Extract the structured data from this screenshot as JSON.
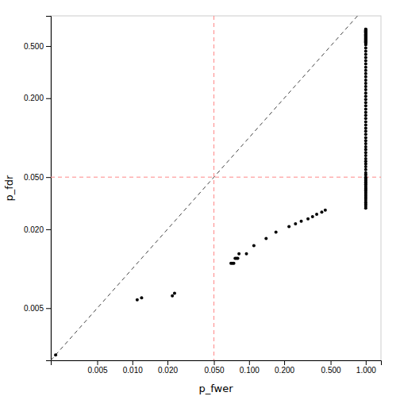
{
  "chart_data": {
    "type": "scatter",
    "xlabel": "p_fwer",
    "ylabel": "p_fdr",
    "log": true,
    "color": "black",
    "marker": "circle",
    "xlim": [
      0.002,
      1.35
    ],
    "ylim": [
      0.002,
      0.85
    ],
    "xticks": [
      0.005,
      {
        "value": 0.01,
        "label": "0.010"
      },
      {
        "value": 0.02,
        "label": "0.020"
      },
      {
        "value": 0.05,
        "label": "0.050"
      },
      {
        "value": 0.1,
        "label": "0.100"
      },
      {
        "value": 0.2,
        "label": "0.200"
      },
      {
        "value": 0.5,
        "label": "0.500"
      },
      {
        "value": 1.0,
        "label": "1.000"
      }
    ],
    "yticks": [
      0.005,
      {
        "value": 0.02,
        "label": "0.020"
      },
      {
        "value": 0.05,
        "label": "0.050"
      },
      {
        "value": 0.2,
        "label": "0.200"
      },
      {
        "value": 0.5,
        "label": "0.500"
      }
    ],
    "identity_line": {
      "color": "#444444",
      "line_style": "dashed"
    },
    "reference_lines": [
      {
        "axis": "x",
        "value": 0.05,
        "color": "#FF8888",
        "line_style": "dashed"
      },
      {
        "axis": "y",
        "value": 0.05,
        "color": "#FF8888",
        "line_style": "dashed"
      }
    ],
    "x": [
      0.0022,
      0.011,
      0.012,
      0.022,
      0.023,
      0.07,
      0.072,
      0.074,
      0.076,
      0.078,
      0.08,
      0.082,
      0.095,
      0.11,
      0.14,
      0.17,
      0.22,
      0.25,
      0.28,
      0.32,
      0.35,
      0.38,
      0.42,
      0.45,
      1.0,
      1.0,
      1.0,
      1.0,
      1.0,
      1.0,
      1.0,
      1.0,
      1.0,
      1.0,
      1.0,
      1.0,
      1.0,
      1.0,
      1.0,
      1.0,
      1.0,
      1.0,
      1.0,
      1.0,
      1.0,
      1.0,
      1.0,
      1.0,
      1.0,
      1.0,
      1.0,
      1.0,
      1.0,
      1.0,
      1.0,
      1.0,
      1.0,
      1.0,
      1.0,
      1.0,
      1.0,
      1.0,
      1.0,
      1.0,
      1.0,
      1.0,
      1.0,
      1.0,
      1.0,
      1.0,
      1.0,
      1.0,
      1.0,
      1.0,
      1.0,
      1.0,
      1.0,
      1.0,
      1.0,
      1.0,
      1.0,
      1.0,
      1.0,
      1.0,
      1.0,
      1.0,
      1.0,
      1.0,
      1.0,
      1.0,
      1.0,
      1.0,
      1.0,
      1.0,
      1.0,
      1.0,
      1.0,
      1.0,
      1.0,
      1.0,
      1.0,
      1.0,
      1.0,
      1.0,
      1.0,
      1.0,
      1.0,
      1.0,
      1.0,
      1.0,
      1.0,
      1.0,
      1.0,
      1.0,
      1.0,
      1.0,
      1.0,
      1.0,
      1.0,
      1.0,
      1.0,
      1.0,
      1.0,
      1.0
    ],
    "y": [
      0.0022,
      0.0058,
      0.006,
      0.0062,
      0.0065,
      0.011,
      0.011,
      0.011,
      0.012,
      0.012,
      0.012,
      0.013,
      0.013,
      0.015,
      0.017,
      0.019,
      0.021,
      0.022,
      0.023,
      0.024,
      0.025,
      0.026,
      0.027,
      0.028,
      0.029,
      0.03,
      0.031,
      0.032,
      0.033,
      0.034,
      0.035,
      0.036,
      0.037,
      0.038,
      0.039,
      0.04,
      0.041,
      0.042,
      0.043,
      0.044,
      0.045,
      0.046,
      0.047,
      0.048,
      0.049,
      0.05,
      0.052,
      0.054,
      0.057,
      0.06,
      0.063,
      0.066,
      0.069,
      0.073,
      0.077,
      0.081,
      0.085,
      0.09,
      0.095,
      0.1,
      0.106,
      0.112,
      0.118,
      0.125,
      0.132,
      0.14,
      0.148,
      0.156,
      0.165,
      0.175,
      0.185,
      0.196,
      0.207,
      0.219,
      0.232,
      0.246,
      0.26,
      0.275,
      0.291,
      0.308,
      0.326,
      0.345,
      0.365,
      0.386,
      0.409,
      0.432,
      0.457,
      0.483,
      0.511,
      0.54,
      0.571,
      0.603,
      0.637,
      0.673,
      0.671,
      0.665,
      0.66,
      0.655,
      0.65,
      0.645,
      0.64,
      0.635,
      0.63,
      0.625,
      0.62,
      0.615,
      0.61,
      0.605,
      0.6,
      0.595,
      0.59,
      0.585,
      0.58,
      0.575,
      0.57,
      0.565,
      0.56,
      0.555,
      0.55,
      0.545,
      0.54,
      0.535,
      0.53,
      0.525
    ]
  }
}
